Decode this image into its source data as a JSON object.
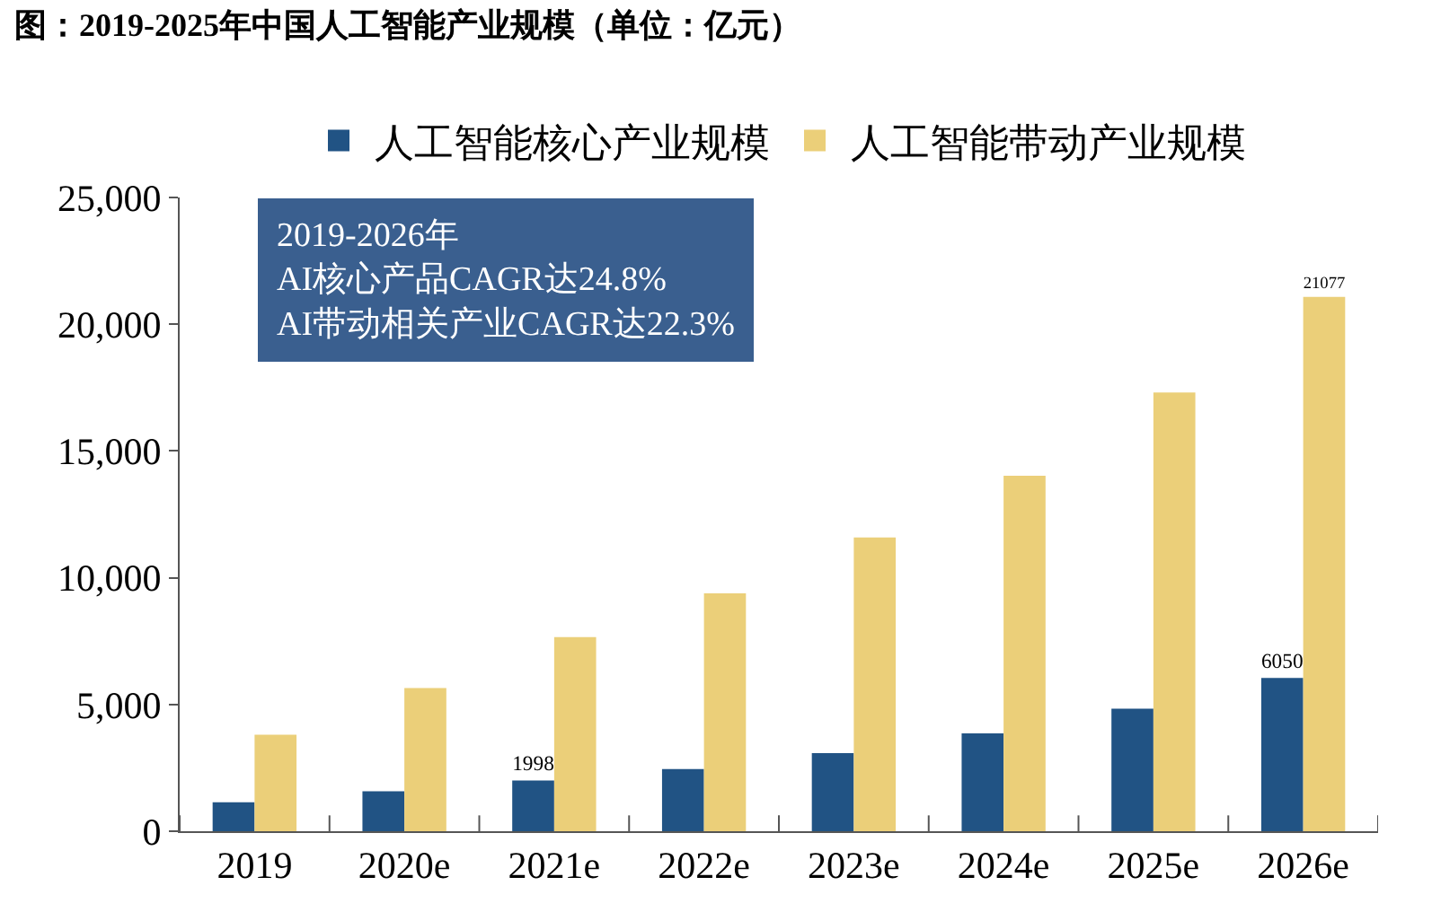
{
  "chart_data": {
    "type": "bar",
    "title": "图：2019-2025年中国人工智能产业规模（单位：亿元）",
    "categories": [
      "2019",
      "2020e",
      "2021e",
      "2022e",
      "2023e",
      "2024e",
      "2025e",
      "2026e"
    ],
    "series": [
      {
        "name": "人工智能核心产业规模",
        "color": "#215384",
        "values": [
          1140,
          1580,
          1998,
          2450,
          3080,
          3860,
          4830,
          6050
        ],
        "value_labels": [
          null,
          null,
          "1998",
          null,
          null,
          null,
          null,
          "6050"
        ]
      },
      {
        "name": "人工智能带动产业规模",
        "color": "#ebcf79",
        "values": [
          3810,
          5650,
          7660,
          9380,
          11590,
          14020,
          17310,
          21077
        ],
        "value_labels": [
          null,
          null,
          null,
          null,
          null,
          null,
          null,
          "21077"
        ]
      }
    ],
    "ylim": [
      0,
      25000
    ],
    "yticks": [
      {
        "value": 0,
        "label": "0"
      },
      {
        "value": 5000,
        "label": "5,000"
      },
      {
        "value": 10000,
        "label": "10,000"
      },
      {
        "value": 15000,
        "label": "15,000"
      },
      {
        "value": 20000,
        "label": "20,000"
      },
      {
        "value": 25000,
        "label": "25,000"
      }
    ],
    "annotations": [
      "2019-2026年\nAI核心产品CAGR达24.8%\nAI带动相关产业CAGR达22.3%"
    ],
    "grid": false,
    "legend": "top"
  }
}
